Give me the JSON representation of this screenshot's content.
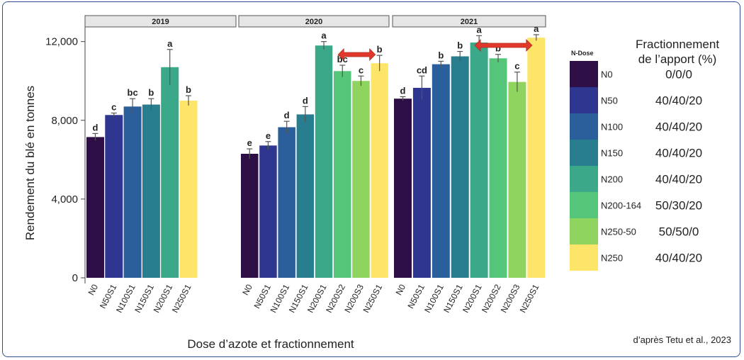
{
  "chart_data": {
    "type": "bar",
    "ylabel": "Rendement du blé en tonnes",
    "xlabel": "Dose d’azote et fractionnement",
    "yticks": [
      "0",
      "4,000",
      "8,000",
      "12,000"
    ],
    "ylim": [
      0,
      12600
    ],
    "grid": false,
    "legend": {
      "title": "N-Dose",
      "placement": "right",
      "split_title": [
        "Fractionnement",
        "de l’apport (%)"
      ],
      "items": [
        {
          "key": "N0",
          "color": "#2d0f45",
          "split": "0/0/0"
        },
        {
          "key": "N50",
          "color": "#2e3690",
          "split": "40/40/20"
        },
        {
          "key": "N100",
          "color": "#2b5f9b",
          "split": "40/40/20"
        },
        {
          "key": "N150",
          "color": "#287d8e",
          "split": "40/40/20"
        },
        {
          "key": "N200",
          "color": "#3ba88a",
          "split": "40/40/20"
        },
        {
          "key": "N200-164",
          "color": "#55c679",
          "split": "50/30/20"
        },
        {
          "key": "N250-50",
          "color": "#8fd45e",
          "split": "50/50/0"
        },
        {
          "key": "N250",
          "color": "#fde569",
          "split": "40/40/20"
        }
      ]
    },
    "panels": [
      {
        "title": "2019",
        "bars": [
          {
            "category": "N0",
            "value": 7150,
            "err": 180,
            "sig": "d",
            "color": "#2d0f45"
          },
          {
            "category": "N50S1",
            "value": 8270,
            "err": 100,
            "sig": "c",
            "color": "#2e3690"
          },
          {
            "category": "N100S1",
            "value": 8700,
            "err": 400,
            "sig": "bc",
            "color": "#2b5f9b"
          },
          {
            "category": "N150S1",
            "value": 8800,
            "err": 300,
            "sig": "b",
            "color": "#287d8e"
          },
          {
            "category": "N200S1",
            "value": 10700,
            "err": 900,
            "sig": "a",
            "color": "#3ba88a"
          },
          {
            "category": "N250S1",
            "value": 9000,
            "err": 250,
            "sig": "b",
            "color": "#fde569"
          }
        ]
      },
      {
        "title": "2020",
        "bars": [
          {
            "category": "N0",
            "value": 6300,
            "err": 250,
            "sig": "e",
            "color": "#2d0f45"
          },
          {
            "category": "N50S1",
            "value": 6720,
            "err": 200,
            "sig": "e",
            "color": "#2e3690"
          },
          {
            "category": "N100S1",
            "value": 7650,
            "err": 300,
            "sig": "d",
            "color": "#2b5f9b"
          },
          {
            "category": "N150S1",
            "value": 8300,
            "err": 400,
            "sig": "d",
            "color": "#287d8e"
          },
          {
            "category": "N200S1",
            "value": 11800,
            "err": 200,
            "sig": "a",
            "color": "#3ba88a"
          },
          {
            "category": "N200S2",
            "value": 10500,
            "err": 300,
            "sig": "bc",
            "color": "#55c679"
          },
          {
            "category": "N200S3",
            "value": 10000,
            "err": 250,
            "sig": "c",
            "color": "#8fd45e"
          },
          {
            "category": "N250S1",
            "value": 10900,
            "err": 400,
            "sig": "b",
            "color": "#fde569"
          }
        ],
        "arrow": {
          "from": "N200S2",
          "to": "N250S1"
        }
      },
      {
        "title": "2021",
        "bars": [
          {
            "category": "N0",
            "value": 9100,
            "err": 100,
            "sig": "d",
            "color": "#2d0f45"
          },
          {
            "category": "N50S1",
            "value": 9650,
            "err": 600,
            "sig": "cd",
            "color": "#2e3690"
          },
          {
            "category": "N100S1",
            "value": 10850,
            "err": 150,
            "sig": "b",
            "color": "#2b5f9b"
          },
          {
            "category": "N150S1",
            "value": 11250,
            "err": 250,
            "sig": "b",
            "color": "#287d8e"
          },
          {
            "category": "N200S1",
            "value": 11950,
            "err": 350,
            "sig": "a",
            "color": "#3ba88a"
          },
          {
            "category": "N200S2",
            "value": 11150,
            "err": 200,
            "sig": "b",
            "color": "#55c679"
          },
          {
            "category": "N200S3",
            "value": 9950,
            "err": 500,
            "sig": "c",
            "color": "#8fd45e"
          },
          {
            "category": "N250S1",
            "value": 12200,
            "err": 150,
            "sig": "a",
            "color": "#fde569"
          }
        ],
        "arrow": {
          "from": "N200S1",
          "to": "N250S1"
        }
      }
    ],
    "source": "d’après Tetu et al., 2023"
  }
}
